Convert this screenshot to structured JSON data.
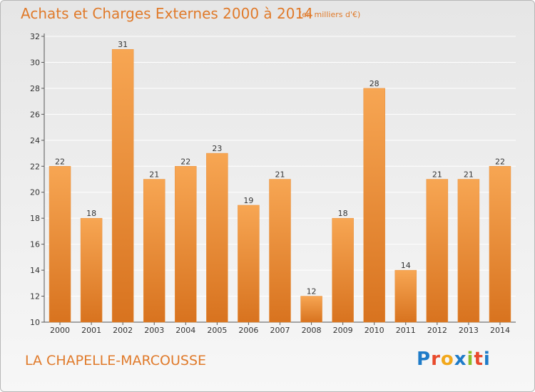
{
  "colors": {
    "accent": "#e07a2a",
    "bar_top": "#f7a653",
    "bar_bottom": "#d8731f",
    "grid": "#ffffff",
    "axis": "#555555"
  },
  "header": {
    "title": "Achats et Charges Externes 2000 à 2014",
    "subtitle": "(en milliers d'€)"
  },
  "footer": {
    "commune": "LA CHAPELLE-MARCOUSSE",
    "brand": "Proxiti",
    "brand_colors": [
      "#1e7bc8",
      "#e84a2c",
      "#f2a81c",
      "#1e7bc8",
      "#8cbf26",
      "#e84a2c",
      "#1e7bc8"
    ]
  },
  "chart_data": {
    "type": "bar",
    "title": "Achats et Charges Externes 2000 à 2014",
    "subtitle": "(en milliers d'€)",
    "categories": [
      "2000",
      "2001",
      "2002",
      "2003",
      "2004",
      "2005",
      "2006",
      "2007",
      "2008",
      "2009",
      "2010",
      "2011",
      "2012",
      "2013",
      "2014"
    ],
    "values": [
      22,
      18,
      31,
      21,
      22,
      23,
      19,
      21,
      12,
      18,
      28,
      14,
      21,
      21,
      22
    ],
    "ylim": [
      10,
      32
    ],
    "yticks": [
      10,
      12,
      14,
      16,
      18,
      20,
      22,
      24,
      26,
      28,
      30,
      32
    ],
    "grid": true,
    "xlabel": "",
    "ylabel": ""
  }
}
